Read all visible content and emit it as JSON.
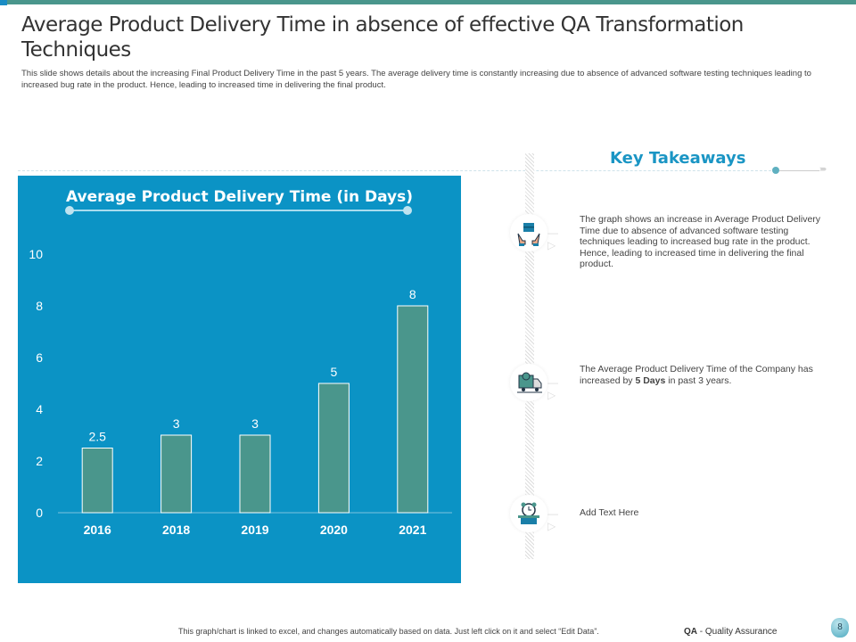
{
  "header": {
    "title": "Average Product Delivery Time in absence of effective QA Transformation Techniques",
    "subtitle": "This slide shows details about the increasing Final Product Delivery Time  in the past 5 years. The average delivery time is constantly increasing due to absence of advanced software testing techniques leading to increased bug rate in the product. Hence, leading to increased time in delivering the final product."
  },
  "colors": {
    "accent": "#4a968c",
    "panel": "#0b93c5",
    "bar": "#4a968c",
    "heading": "#1a95c4"
  },
  "chart_data": {
    "type": "bar",
    "title": "Average Product Delivery Time (in Days)",
    "categories": [
      "2016",
      "2018",
      "2019",
      "2020",
      "2021"
    ],
    "values": [
      2.5,
      3,
      3,
      5,
      8
    ],
    "value_labels": [
      "2.5",
      "3",
      "3",
      "5",
      "8"
    ],
    "ylim": [
      0,
      10
    ],
    "yticks": [
      "0",
      "2",
      "4",
      "6",
      "8",
      "10"
    ],
    "grid": false,
    "legend": "none"
  },
  "takeaways": {
    "heading": "Key Takeaways",
    "items": [
      {
        "icon": "hands-box-icon",
        "text": "The graph shows an increase in Average Product Delivery Time due to absence of advanced software testing techniques leading to increased bug rate in the product. Hence, leading to increased time in delivering the final product."
      },
      {
        "icon": "delivery-truck-icon",
        "text_pre": "The Average Product Delivery Time of the Company has increased by ",
        "text_bold": "5 Days",
        "text_post": " in past 3 years."
      },
      {
        "icon": "alarm-box-icon",
        "text": "Add Text Here"
      }
    ]
  },
  "footer": {
    "note": "This graph/chart is linked to excel, and changes automatically based on data. Just left click on it and select “Edit Data”.",
    "qa_bold": "QA",
    "qa_rest": " - Quality Assurance",
    "page": "8"
  }
}
